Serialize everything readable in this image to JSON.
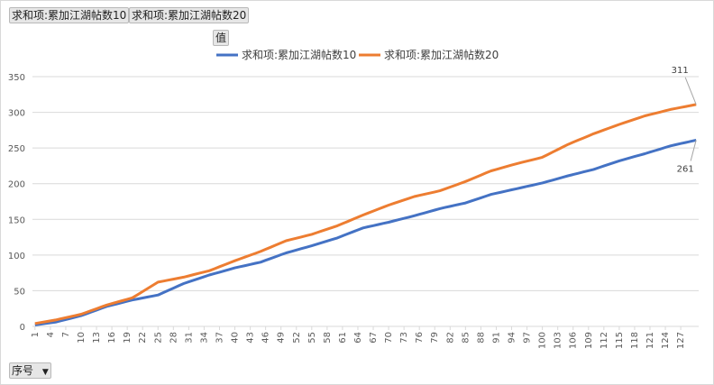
{
  "field_buttons": {
    "filter_1": "求和项:累加江湖帖数10",
    "filter_2": "求和项:累加江湖帖数20",
    "values": "值",
    "category": "序号"
  },
  "icons": {
    "dropdown": "dropdown-arrow-icon"
  },
  "colors": {
    "series_1": "#4472C4",
    "series_2": "#ED7D31",
    "grid": "#D9D9D9"
  },
  "chart_data": {
    "type": "line",
    "x_start": 1,
    "x_end": 130,
    "x_tick_labels": [
      "1",
      "4",
      "7",
      "10",
      "13",
      "16",
      "19",
      "22",
      "25",
      "28",
      "31",
      "34",
      "37",
      "40",
      "43",
      "46",
      "49",
      "52",
      "55",
      "58",
      "61",
      "64",
      "67",
      "70",
      "73",
      "76",
      "79",
      "82",
      "85",
      "88",
      "91",
      "94",
      "97",
      "100",
      "103",
      "106",
      "109",
      "112",
      "115",
      "118",
      "121",
      "124",
      "127"
    ],
    "y_ticks": [
      0,
      50,
      100,
      150,
      200,
      250,
      300,
      350
    ],
    "ylim": [
      0,
      350
    ],
    "grid": true,
    "legend_position": "top",
    "series": [
      {
        "name": "求和项:累加江湖帖数10",
        "anchors": [
          [
            1,
            2
          ],
          [
            5,
            6
          ],
          [
            10,
            15
          ],
          [
            15,
            28
          ],
          [
            20,
            37
          ],
          [
            25,
            44
          ],
          [
            30,
            60
          ],
          [
            35,
            72
          ],
          [
            40,
            82
          ],
          [
            45,
            90
          ],
          [
            50,
            103
          ],
          [
            55,
            113
          ],
          [
            60,
            124
          ],
          [
            65,
            138
          ],
          [
            70,
            146
          ],
          [
            75,
            155
          ],
          [
            80,
            165
          ],
          [
            85,
            173
          ],
          [
            90,
            185
          ],
          [
            95,
            193
          ],
          [
            100,
            201
          ],
          [
            105,
            211
          ],
          [
            110,
            220
          ],
          [
            115,
            232
          ],
          [
            120,
            242
          ],
          [
            125,
            253
          ],
          [
            130,
            261
          ]
        ],
        "end_label": "261"
      },
      {
        "name": "求和项:累加江湖帖数20",
        "anchors": [
          [
            1,
            4
          ],
          [
            5,
            9
          ],
          [
            10,
            17
          ],
          [
            15,
            30
          ],
          [
            20,
            40
          ],
          [
            25,
            62
          ],
          [
            30,
            69
          ],
          [
            35,
            78
          ],
          [
            40,
            92
          ],
          [
            45,
            105
          ],
          [
            50,
            120
          ],
          [
            55,
            129
          ],
          [
            60,
            141
          ],
          [
            65,
            156
          ],
          [
            70,
            170
          ],
          [
            75,
            182
          ],
          [
            80,
            190
          ],
          [
            85,
            203
          ],
          [
            90,
            218
          ],
          [
            95,
            228
          ],
          [
            100,
            237
          ],
          [
            105,
            255
          ],
          [
            110,
            270
          ],
          [
            115,
            283
          ],
          [
            120,
            295
          ],
          [
            125,
            304
          ],
          [
            130,
            311
          ]
        ],
        "end_label": "311"
      }
    ]
  }
}
